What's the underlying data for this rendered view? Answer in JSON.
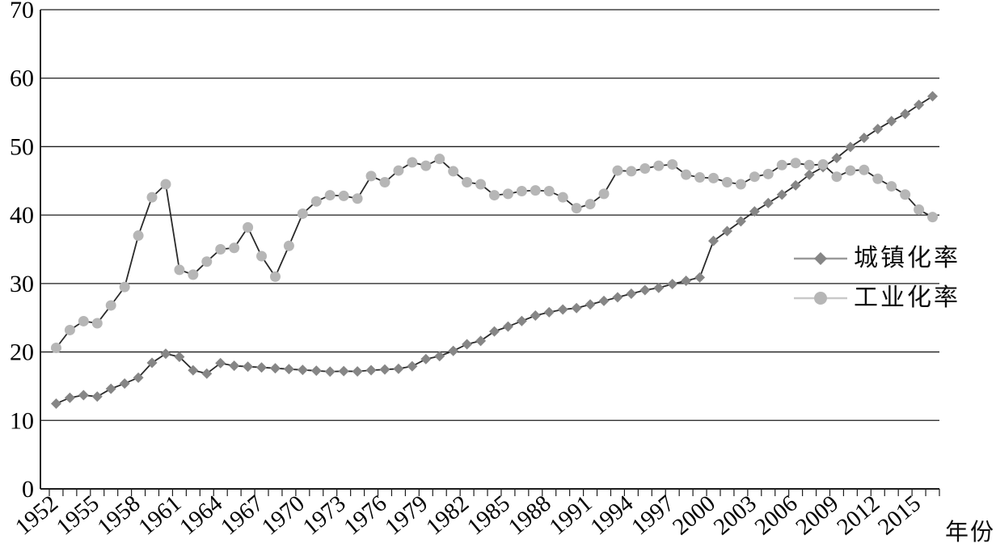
{
  "chart_data": {
    "type": "line",
    "title": "",
    "xlabel": "年份",
    "ylabel": "",
    "ylim": [
      0,
      70
    ],
    "grid": true,
    "legend_position": "middle-right",
    "y_ticks": [
      0,
      10,
      20,
      30,
      40,
      50,
      60,
      70
    ],
    "x_tick_labels": [
      "1952",
      "1955",
      "1958",
      "1961",
      "1964",
      "1967",
      "1970",
      "1973",
      "1976",
      "1979",
      "1982",
      "1985",
      "1988",
      "1991",
      "1994",
      "1997",
      "2000",
      "2003",
      "2006",
      "2009",
      "2012",
      "2015"
    ],
    "x": [
      1952,
      1953,
      1954,
      1955,
      1956,
      1957,
      1958,
      1959,
      1960,
      1961,
      1962,
      1963,
      1964,
      1965,
      1966,
      1967,
      1968,
      1969,
      1970,
      1971,
      1972,
      1973,
      1974,
      1975,
      1976,
      1977,
      1978,
      1979,
      1980,
      1981,
      1982,
      1983,
      1984,
      1985,
      1986,
      1987,
      1988,
      1989,
      1990,
      1991,
      1992,
      1993,
      1994,
      1995,
      1996,
      1997,
      1998,
      1999,
      2000,
      2001,
      2002,
      2003,
      2004,
      2005,
      2006,
      2007,
      2008,
      2009,
      2010,
      2011,
      2012,
      2013,
      2014,
      2015,
      2016
    ],
    "series": [
      {
        "name": "城镇化率",
        "marker": "diamond",
        "marker_color": "#868686",
        "line_color": "#2a2a2a",
        "legend_line_color": "#9a9a9a",
        "values": [
          12.46,
          13.31,
          13.69,
          13.48,
          14.62,
          15.39,
          16.25,
          18.41,
          19.75,
          19.29,
          17.33,
          16.84,
          18.37,
          17.98,
          17.86,
          17.74,
          17.62,
          17.5,
          17.38,
          17.26,
          17.13,
          17.2,
          17.16,
          17.34,
          17.44,
          17.55,
          17.92,
          18.96,
          19.39,
          20.16,
          21.13,
          21.62,
          23.01,
          23.71,
          24.52,
          25.32,
          25.81,
          26.21,
          26.41,
          26.94,
          27.46,
          27.99,
          28.51,
          29.04,
          29.37,
          29.92,
          30.4,
          30.89,
          36.22,
          37.66,
          39.09,
          40.53,
          41.76,
          42.99,
          44.34,
          45.89,
          46.99,
          48.34,
          49.95,
          51.27,
          52.57,
          53.73,
          54.77,
          56.1,
          57.35
        ]
      },
      {
        "name": "工业化率",
        "marker": "circle",
        "marker_color": "#b6b6b6",
        "line_color": "#2a2a2a",
        "legend_line_color": "#c9c9c9",
        "values": [
          20.6,
          23.2,
          24.5,
          24.2,
          26.8,
          29.5,
          37.0,
          42.6,
          44.5,
          32.0,
          31.3,
          33.2,
          35.0,
          35.2,
          38.2,
          34.0,
          31.0,
          35.5,
          40.2,
          42.0,
          42.9,
          42.8,
          42.4,
          45.7,
          44.8,
          46.5,
          47.7,
          47.2,
          48.2,
          46.4,
          44.8,
          44.5,
          42.9,
          43.1,
          43.5,
          43.6,
          43.5,
          42.6,
          41.0,
          41.6,
          43.1,
          46.5,
          46.4,
          46.8,
          47.2,
          47.4,
          45.9,
          45.5,
          45.4,
          44.8,
          44.5,
          45.6,
          46.0,
          47.3,
          47.6,
          47.3,
          47.4,
          45.6,
          46.5,
          46.6,
          45.3,
          44.2,
          43.0,
          40.8,
          39.7
        ]
      }
    ]
  }
}
